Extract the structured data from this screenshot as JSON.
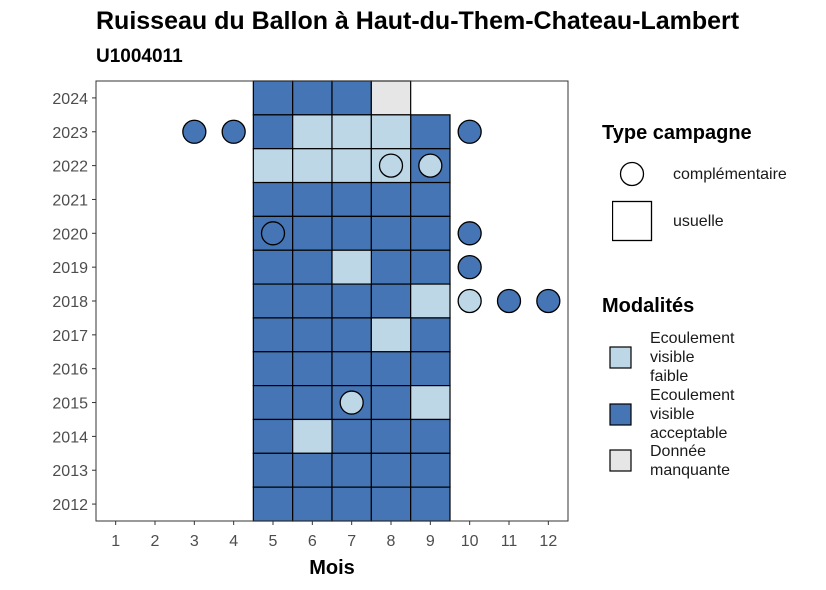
{
  "chart_data": {
    "type": "heatmap",
    "title": "Ruisseau du Ballon à Haut-du-Them-Chateau-Lambert",
    "subtitle": "U1004011",
    "xlabel": "Mois",
    "ylabel": "",
    "x_ticks": [
      1,
      2,
      3,
      4,
      5,
      6,
      7,
      8,
      9,
      10,
      11,
      12
    ],
    "y_ticks": [
      2012,
      2013,
      2014,
      2015,
      2016,
      2017,
      2018,
      2019,
      2020,
      2021,
      2022,
      2023,
      2024
    ],
    "xlim": [
      0.5,
      12.5
    ],
    "ylim": [
      2011.5,
      2024.5
    ],
    "grid": false,
    "colors": {
      "Ecoulement visible faible": "#bdd7e7",
      "Ecoulement visible acceptable": "#4575b4",
      "Donnée manquante": "#e6e6e6"
    },
    "usuelle": [
      {
        "year": 2024,
        "months": [
          5,
          6,
          7
        ],
        "modalite": "Ecoulement visible acceptable"
      },
      {
        "year": 2024,
        "months": [
          8
        ],
        "modalite": "Donnée manquante"
      },
      {
        "year": 2023,
        "months": [
          5,
          9
        ],
        "modalite": "Ecoulement visible acceptable"
      },
      {
        "year": 2023,
        "months": [
          6,
          7,
          8
        ],
        "modalite": "Ecoulement visible faible"
      },
      {
        "year": 2022,
        "months": [
          5,
          6,
          7,
          8
        ],
        "modalite": "Ecoulement visible faible"
      },
      {
        "year": 2022,
        "months": [
          9
        ],
        "modalite": "Ecoulement visible acceptable"
      },
      {
        "year": 2021,
        "months": [
          5,
          6,
          7,
          8,
          9
        ],
        "modalite": "Ecoulement visible acceptable"
      },
      {
        "year": 2020,
        "months": [
          5,
          6,
          7,
          8,
          9
        ],
        "modalite": "Ecoulement visible acceptable"
      },
      {
        "year": 2019,
        "months": [
          5,
          6,
          8,
          9
        ],
        "modalite": "Ecoulement visible acceptable"
      },
      {
        "year": 2019,
        "months": [
          7
        ],
        "modalite": "Ecoulement visible faible"
      },
      {
        "year": 2018,
        "months": [
          5,
          6,
          7,
          8
        ],
        "modalite": "Ecoulement visible acceptable"
      },
      {
        "year": 2018,
        "months": [
          9
        ],
        "modalite": "Ecoulement visible faible"
      },
      {
        "year": 2017,
        "months": [
          5,
          6,
          7,
          9
        ],
        "modalite": "Ecoulement visible acceptable"
      },
      {
        "year": 2017,
        "months": [
          8
        ],
        "modalite": "Ecoulement visible faible"
      },
      {
        "year": 2016,
        "months": [
          5,
          6,
          7,
          8,
          9
        ],
        "modalite": "Ecoulement visible acceptable"
      },
      {
        "year": 2015,
        "months": [
          5,
          6,
          7,
          8
        ],
        "modalite": "Ecoulement visible acceptable"
      },
      {
        "year": 2015,
        "months": [
          9
        ],
        "modalite": "Ecoulement visible faible"
      },
      {
        "year": 2014,
        "months": [
          5,
          7,
          8,
          9
        ],
        "modalite": "Ecoulement visible acceptable"
      },
      {
        "year": 2014,
        "months": [
          6
        ],
        "modalite": "Ecoulement visible faible"
      },
      {
        "year": 2013,
        "months": [
          5,
          6,
          7,
          8,
          9
        ],
        "modalite": "Ecoulement visible acceptable"
      },
      {
        "year": 2012,
        "months": [
          5,
          6,
          7,
          8,
          9
        ],
        "modalite": "Ecoulement visible acceptable"
      }
    ],
    "complementaire": [
      {
        "year": 2023,
        "month": 3,
        "modalite": "Ecoulement visible acceptable"
      },
      {
        "year": 2023,
        "month": 4,
        "modalite": "Ecoulement visible acceptable"
      },
      {
        "year": 2023,
        "month": 10,
        "modalite": "Ecoulement visible acceptable"
      },
      {
        "year": 2022,
        "month": 8,
        "modalite": "Ecoulement visible faible"
      },
      {
        "year": 2022,
        "month": 9,
        "modalite": "Ecoulement visible faible"
      },
      {
        "year": 2020,
        "month": 5,
        "modalite": "Ecoulement visible acceptable"
      },
      {
        "year": 2020,
        "month": 10,
        "modalite": "Ecoulement visible acceptable"
      },
      {
        "year": 2019,
        "month": 10,
        "modalite": "Ecoulement visible acceptable"
      },
      {
        "year": 2018,
        "month": 10,
        "modalite": "Ecoulement visible faible"
      },
      {
        "year": 2018,
        "month": 11,
        "modalite": "Ecoulement visible acceptable"
      },
      {
        "year": 2018,
        "month": 12,
        "modalite": "Ecoulement visible acceptable"
      },
      {
        "year": 2015,
        "month": 7,
        "modalite": "Ecoulement visible faible"
      }
    ],
    "legend": {
      "type_title": "Type campagne",
      "type_items": [
        "complémentaire",
        "usuelle"
      ],
      "modalite_title": "Modalités",
      "modalite_items": [
        {
          "lines": [
            "Ecoulement",
            "visible",
            "faible"
          ],
          "key": "Ecoulement visible faible"
        },
        {
          "lines": [
            "Ecoulement",
            "visible",
            "acceptable"
          ],
          "key": "Ecoulement visible acceptable"
        },
        {
          "lines": [
            "Donnée",
            "manquante"
          ],
          "key": "Donnée manquante"
        }
      ],
      "placement": "right"
    }
  }
}
